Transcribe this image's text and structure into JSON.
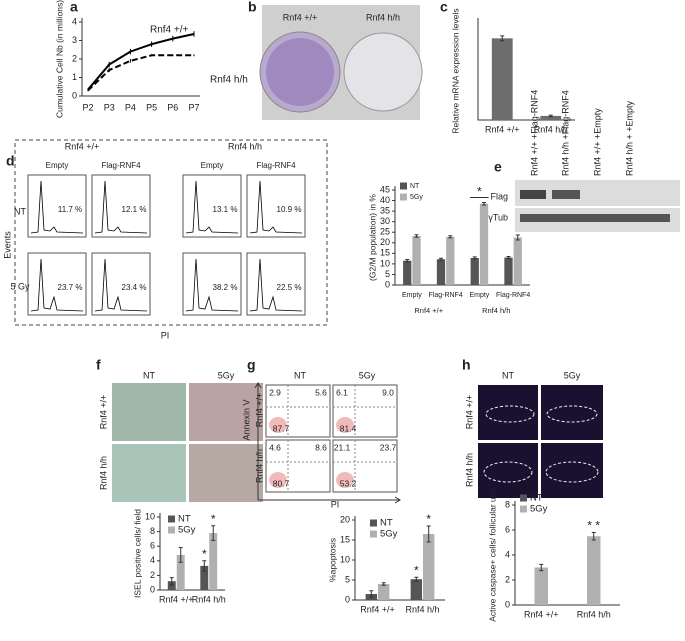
{
  "panel_labels": [
    "a",
    "b",
    "c",
    "d",
    "e",
    "f",
    "g",
    "h"
  ],
  "chart_data": [
    {
      "type": "line",
      "y_label": "Cumulative Cell Nb (in millions)",
      "categories": [
        "P2",
        "P3",
        "P4",
        "P5",
        "P6",
        "P7"
      ],
      "series": [
        {
          "name": "Rnf4 +/+",
          "color": "#000000",
          "dashed": false,
          "values": [
            0.35,
            1.7,
            2.4,
            2.8,
            3.1,
            3.35
          ],
          "errors": [
            0.05,
            0.15,
            0.15,
            0.15,
            0.15,
            0.15
          ]
        },
        {
          "name": "Rnf4 h/h",
          "color": "#000000",
          "dashed": true,
          "values": [
            0.3,
            1.4,
            1.9,
            2.2,
            2.2,
            2.2
          ],
          "errors": [
            0.05,
            0.1,
            0.1,
            0.05,
            0.05,
            0.05
          ]
        }
      ],
      "ylim": [
        0,
        4
      ],
      "yticks": [
        0,
        1,
        2,
        3,
        4
      ]
    },
    {
      "type": "bar",
      "y_label": "Relative mRNA expression levels",
      "categories": [
        "Rnf4 +/+",
        "Rnf4 h/h"
      ],
      "series": [
        {
          "color": "#6d6d6d",
          "values": [
            1.0,
            0.05
          ],
          "errors": [
            0.03,
            0.01
          ]
        }
      ],
      "ylim": [
        0,
        1.2
      ]
    },
    {
      "type": "bar",
      "y_label": "(G2/M population) in %",
      "categories": [
        "Empty",
        "Flag-RNF4",
        "Empty",
        "Flag-RNF4"
      ],
      "groups": [
        "Rnf4 +/+",
        "Rnf4 h/h"
      ],
      "series": [
        {
          "name": "NT",
          "color": "#555555",
          "values": [
            11.5,
            12.2,
            12.8,
            13.0
          ],
          "errors": [
            0.6,
            0.5,
            0.5,
            0.5
          ]
        },
        {
          "name": "5Gy",
          "color": "#b0b0b0",
          "values": [
            23.2,
            22.8,
            38.5,
            22.5
          ],
          "errors": [
            0.6,
            0.5,
            0.6,
            1.2
          ]
        }
      ],
      "ylim": [
        0,
        45
      ],
      "yticks": [
        0,
        5,
        10,
        15,
        20,
        25,
        30,
        35,
        40,
        45
      ],
      "annotations": [
        "*"
      ]
    },
    {
      "type": "bar",
      "y_label": "ISEL positive cells/ field",
      "categories": [
        "Rnf4 +/+",
        "Rnf4 h/h"
      ],
      "series": [
        {
          "name": "NT",
          "color": "#555555",
          "values": [
            1.2,
            3.3
          ],
          "errors": [
            0.5,
            0.7
          ]
        },
        {
          "name": "5Gy",
          "color": "#b0b0b0",
          "values": [
            4.8,
            7.8
          ],
          "errors": [
            1.0,
            1.0
          ]
        }
      ],
      "ylim": [
        0,
        10
      ],
      "yticks": [
        0,
        2,
        4,
        6,
        8,
        10
      ],
      "annotations": [
        "*",
        "*"
      ]
    },
    {
      "type": "bar",
      "y_label": "%apoptosis",
      "categories": [
        "Rnf4 +/+",
        "Rnf4 h/h"
      ],
      "series": [
        {
          "name": "NT",
          "color": "#555555",
          "values": [
            1.5,
            5.2
          ],
          "errors": [
            0.8,
            0.5
          ]
        },
        {
          "name": "5Gy",
          "color": "#b0b0b0",
          "values": [
            4.0,
            16.5
          ],
          "errors": [
            0.3,
            2.0
          ]
        }
      ],
      "ylim": [
        0,
        20
      ],
      "yticks": [
        0,
        5,
        10,
        15,
        20
      ],
      "annotations": [
        "*",
        "*"
      ]
    },
    {
      "type": "bar",
      "y_label": "Active caspase+ cells/ follicular unit",
      "categories": [
        "Rnf4 +/+",
        "Rnf4 h/h"
      ],
      "series": [
        {
          "name": "NT",
          "color": "#555555",
          "values": [
            null,
            null
          ],
          "errors": [
            null,
            null
          ]
        },
        {
          "name": "5Gy",
          "color": "#b0b0b0",
          "values": [
            3.0,
            5.5
          ],
          "errors": [
            0.25,
            0.3
          ]
        }
      ],
      "ylim": [
        0,
        8
      ],
      "yticks": [
        0,
        2,
        4,
        6,
        8
      ],
      "annotations": [
        "* *"
      ]
    }
  ],
  "panel_b": {
    "labels": [
      "Rnf4 +/+",
      "Rnf4 h/h"
    ]
  },
  "panel_d_flow": {
    "genotypes": [
      "Rnf4 +/+",
      "Rnf4 h/h"
    ],
    "constructs": [
      "Empty",
      "Flag-RNF4",
      "Empty",
      "Flag-RNF4"
    ],
    "conditions": [
      "NT",
      "5 Gy"
    ],
    "percentages": [
      [
        "11.7 %",
        "12.1 %",
        "13.1 %",
        "10.9 %"
      ],
      [
        "23.7 %",
        "23.4 %",
        "38.2 %",
        "22.5 %"
      ]
    ],
    "y_label": "Events",
    "x_label": "PI"
  },
  "panel_e": {
    "lanes": [
      "Rnf4 +/+ +Flag-RNF4",
      "Rnf4 h/h +Flag-RNF4",
      "Rnf4 +/+ +Empty",
      "Rnf4 h/h + +Empty"
    ],
    "rows": [
      "Flag",
      "γTub"
    ]
  },
  "panel_f_images": {
    "columns": [
      "NT",
      "5Gy"
    ],
    "rows": [
      "Rnf4 +/+",
      "Rnf4 h/h"
    ]
  },
  "panel_g_flow": {
    "columns": [
      "NT",
      "5Gy"
    ],
    "rows": [
      "Rnf4 +/+",
      "Rnf4 h/h"
    ],
    "quadrants": [
      [
        [
          "2.9",
          "5.6",
          "87.7"
        ],
        [
          "6.1",
          "9.0",
          "81.4"
        ]
      ],
      [
        [
          "4.6",
          "8.6",
          "80.7"
        ],
        [
          "21.1",
          "23.7",
          "53.2"
        ]
      ]
    ],
    "y_label": "Annexin V",
    "x_label": "PI"
  },
  "panel_h_images": {
    "columns": [
      "NT",
      "5Gy"
    ],
    "rows": [
      "Rnf4 +/+",
      "Rnf4 h/h"
    ]
  }
}
